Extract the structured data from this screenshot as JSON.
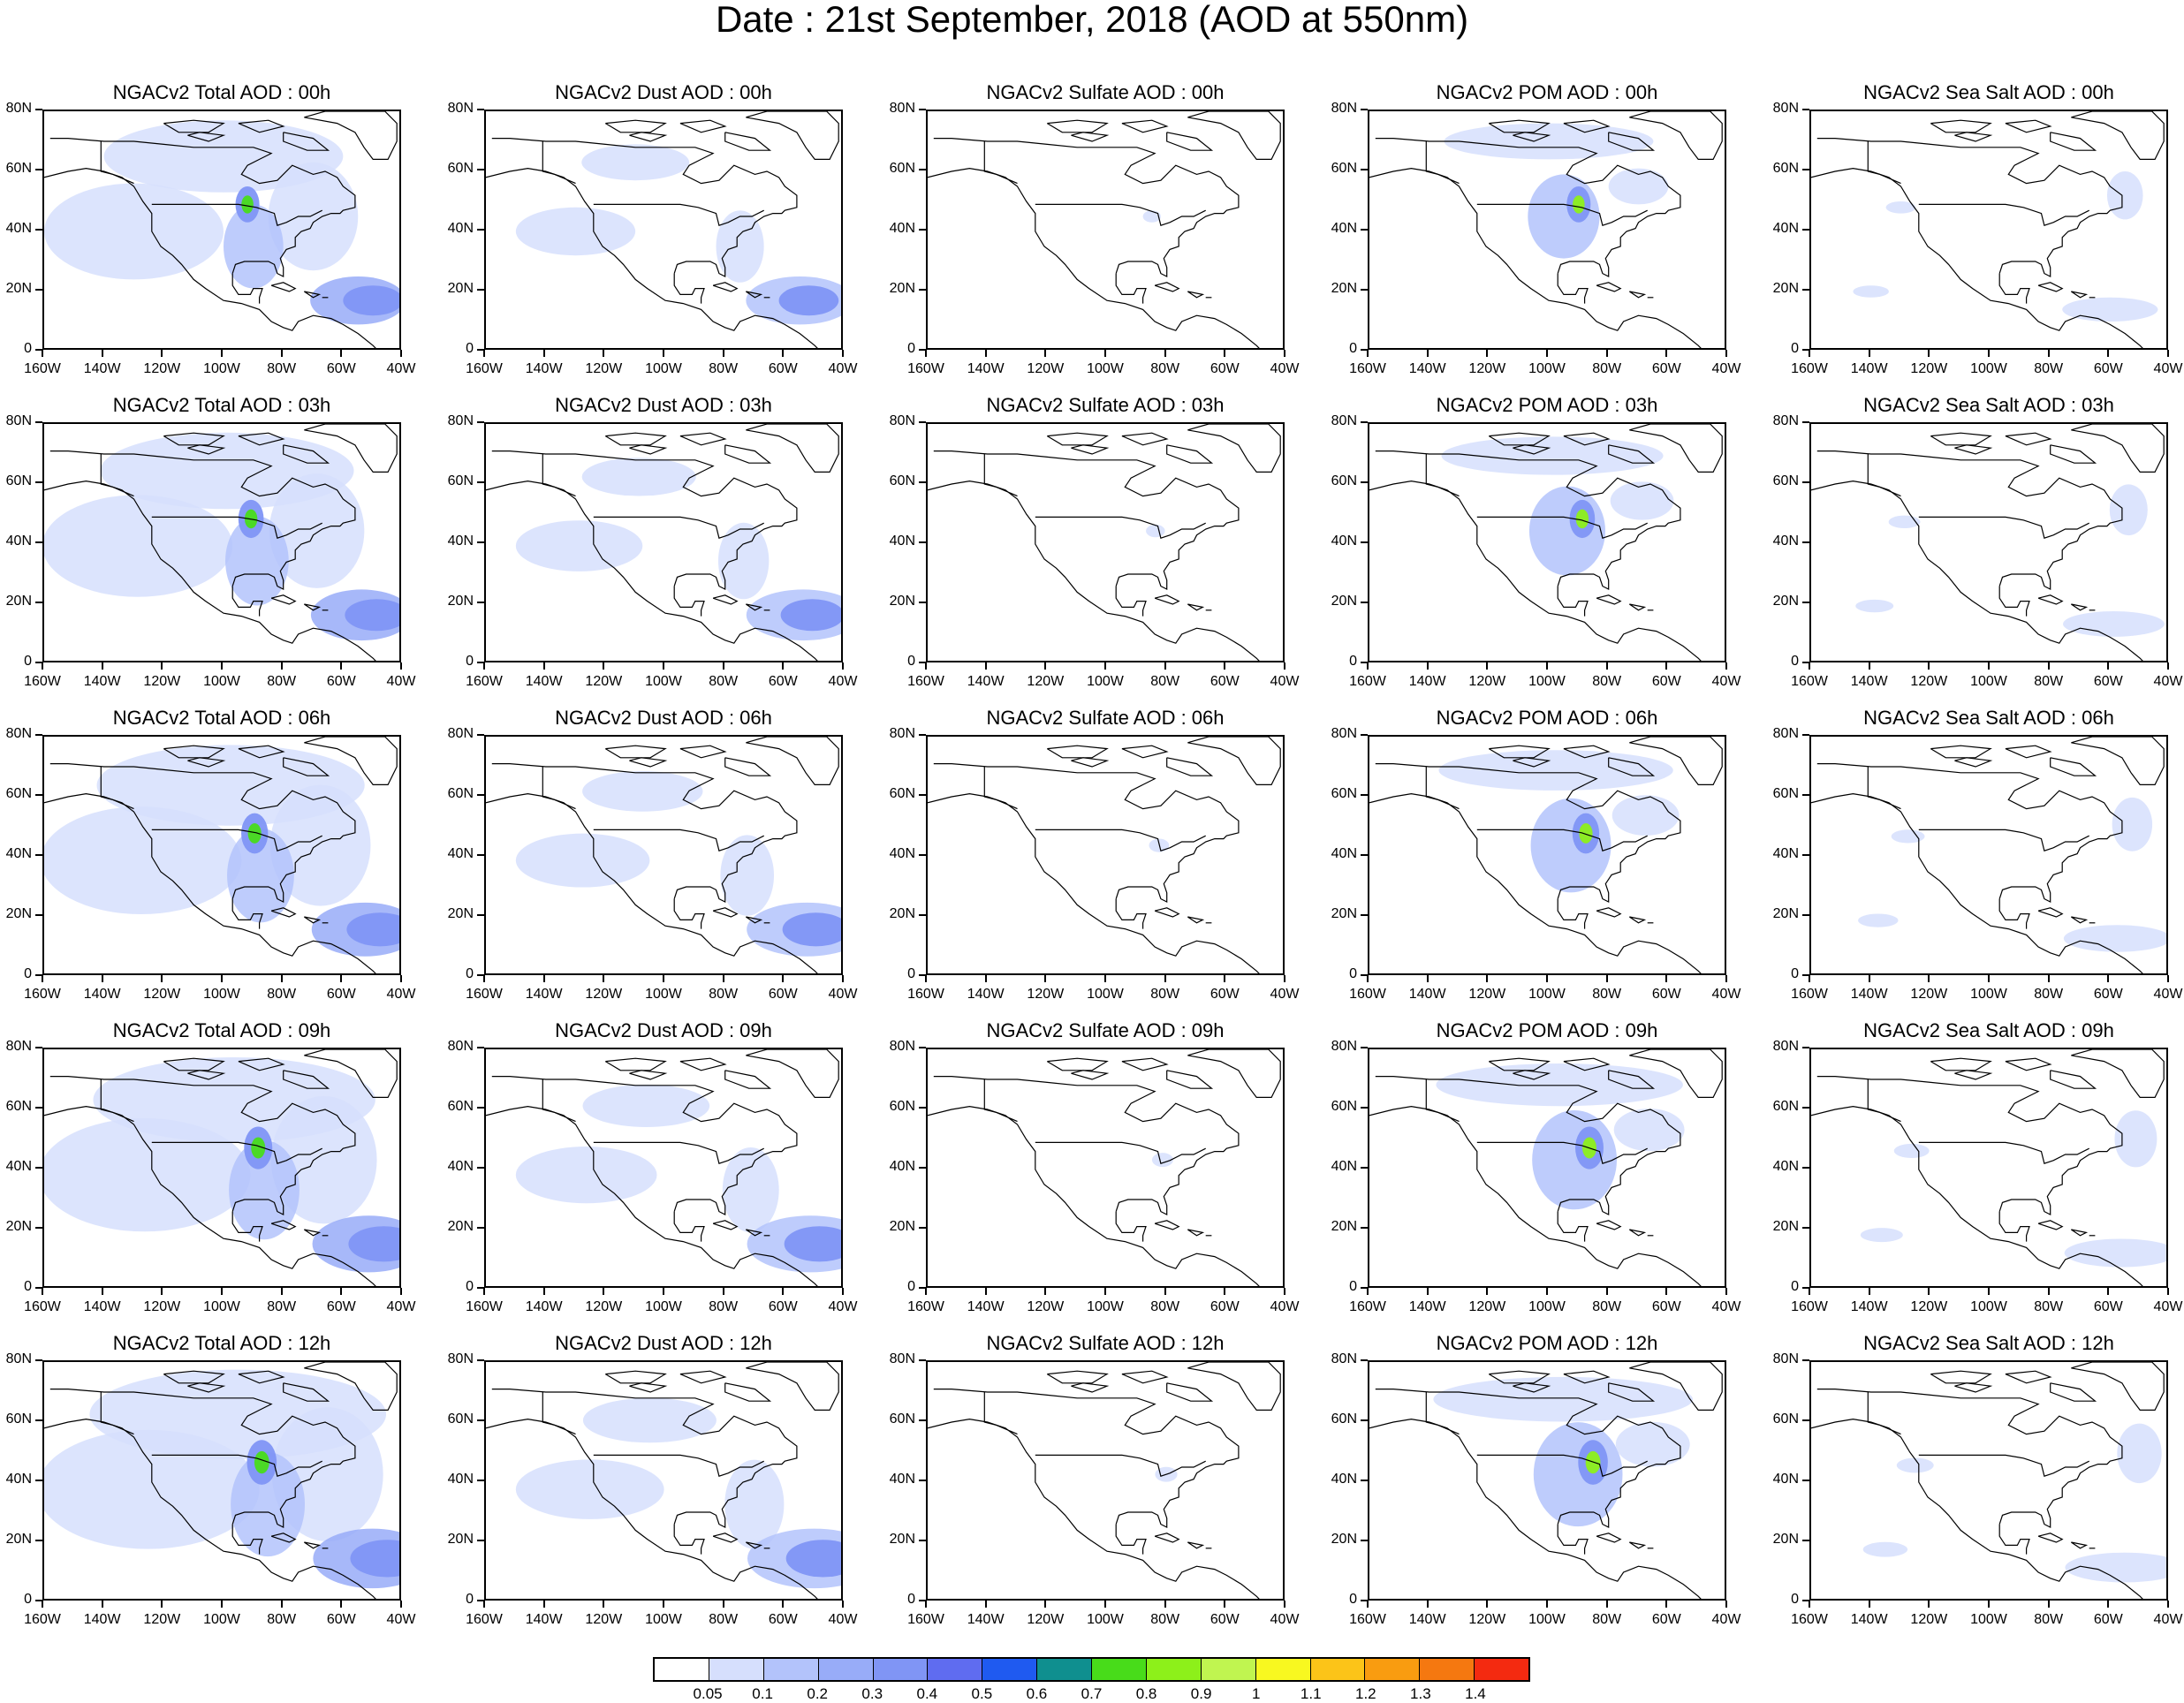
{
  "page": {
    "title": "Date : 21st September, 2018 (AOD at 550nm)"
  },
  "panels": [
    [
      "NGACv2 Total AOD : 00h",
      "NGACv2 Dust AOD : 00h",
      "NGACv2 Sulfate AOD : 00h",
      "NGACv2 POM AOD : 00h",
      "NGACv2 Sea Salt AOD : 00h"
    ],
    [
      "NGACv2 Total AOD : 03h",
      "NGACv2 Dust AOD : 03h",
      "NGACv2 Sulfate AOD : 03h",
      "NGACv2 POM AOD : 03h",
      "NGACv2 Sea Salt AOD : 03h"
    ],
    [
      "NGACv2 Total AOD : 06h",
      "NGACv2 Dust AOD : 06h",
      "NGACv2 Sulfate AOD : 06h",
      "NGACv2 POM AOD : 06h",
      "NGACv2 Sea Salt AOD : 06h"
    ],
    [
      "NGACv2 Total AOD : 09h",
      "NGACv2 Dust AOD : 09h",
      "NGACv2 Sulfate AOD : 09h",
      "NGACv2 POM AOD : 09h",
      "NGACv2 Sea Salt  AOD : 09h"
    ],
    [
      "NGACv2 Total AOD  : 12h",
      "NGACv2 Dust AOD : 12h",
      "NGACv2 Sulfate AOD : 12h",
      "NGACv2 POM  AOD : 12h",
      "NGACv2 Sea Salt  AOD : 12h"
    ]
  ],
  "axes": {
    "y_ticks": [
      "80N",
      "60N",
      "40N",
      "20N",
      "0"
    ],
    "x_ticks": [
      "160W",
      "140W",
      "120W",
      "100W",
      "80W",
      "60W",
      "40W"
    ]
  },
  "colorbar": {
    "labels": [
      "0.05",
      "0.1",
      "0.2",
      "0.3",
      "0.4",
      "0.5",
      "0.6",
      "0.7",
      "0.8",
      "0.9",
      "1",
      "1.1",
      "1.2",
      "1.3",
      "1.4"
    ],
    "colors": [
      "#ffffff",
      "#d6dffd",
      "#b3c3fb",
      "#98acf8",
      "#8095f5",
      "#5f6cf0",
      "#1f5af0",
      "#0f8f8f",
      "#48dc1a",
      "#8df01a",
      "#c0f550",
      "#f8f820",
      "#fcc418",
      "#f99c10",
      "#f57810",
      "#f42a10"
    ]
  }
}
